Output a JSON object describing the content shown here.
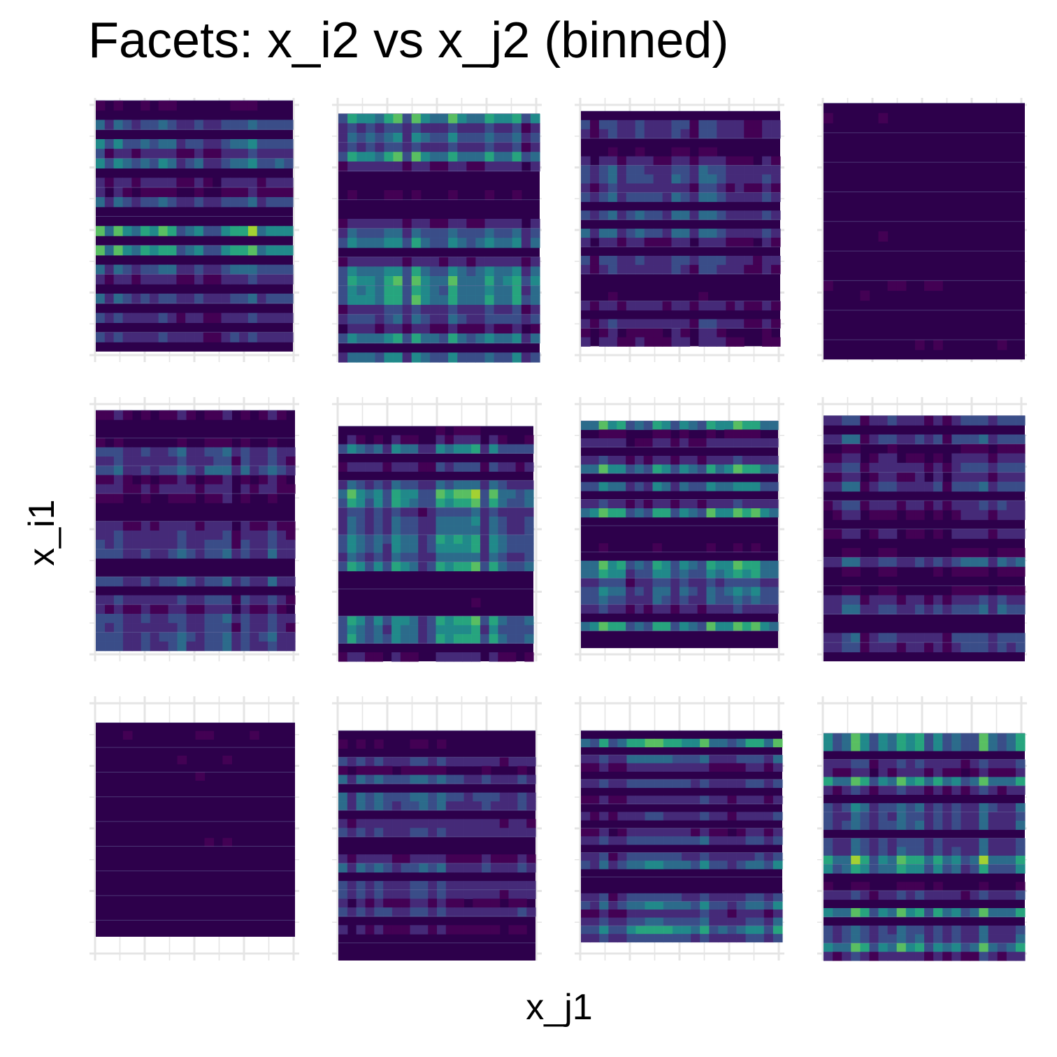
{
  "chart_data": {
    "type": "heatmap",
    "subtype": "faceted filled contour",
    "title": "Facets: x_i2 vs x_j2 (binned)",
    "xlabel": "x_j1",
    "ylabel": "x_i1",
    "facet_layout": {
      "rows": 3,
      "cols": 4
    },
    "colormap": [
      "#440154",
      "#472c7a",
      "#3b518b",
      "#2c718e",
      "#21908d",
      "#27ad81",
      "#5cc863",
      "#aadc32",
      "#fde725"
    ],
    "background_color": "#2d004b",
    "grid_color": "#e5e5e5",
    "grid": true,
    "tick_labels_shown": false,
    "legend": "none",
    "facets": [
      {
        "panel": 1,
        "fill_extent": [
          0.03,
          0.97,
          0.04,
          0.99
        ],
        "intensity": "high"
      },
      {
        "panel": 2,
        "fill_extent": [
          0.03,
          0.99,
          0.0,
          0.94
        ],
        "intensity": "high"
      },
      {
        "panel": 3,
        "fill_extent": [
          0.03,
          0.98,
          0.06,
          0.95
        ],
        "intensity": "medium"
      },
      {
        "panel": 4,
        "fill_extent": [
          0.03,
          0.99,
          0.01,
          0.98
        ],
        "intensity": "very low"
      },
      {
        "panel": 5,
        "fill_extent": [
          0.03,
          0.98,
          0.04,
          0.95
        ],
        "intensity": "medium"
      },
      {
        "panel": 6,
        "fill_extent": [
          0.03,
          0.96,
          0.0,
          0.89
        ],
        "intensity": "high"
      },
      {
        "panel": 7,
        "fill_extent": [
          0.03,
          0.97,
          0.05,
          0.91
        ],
        "intensity": "high"
      },
      {
        "panel": 8,
        "fill_extent": [
          0.03,
          0.99,
          0.0,
          0.93
        ],
        "intensity": "medium"
      },
      {
        "panel": 9,
        "fill_extent": [
          0.03,
          0.98,
          0.09,
          0.9
        ],
        "intensity": "very low"
      },
      {
        "panel": 10,
        "fill_extent": [
          0.03,
          0.97,
          0.0,
          0.87
        ],
        "intensity": "medium"
      },
      {
        "panel": 11,
        "fill_extent": [
          0.03,
          0.99,
          0.07,
          0.87
        ],
        "intensity": "high"
      },
      {
        "panel": 12,
        "fill_extent": [
          0.03,
          0.99,
          0.0,
          0.86
        ],
        "intensity": "high"
      }
    ]
  }
}
